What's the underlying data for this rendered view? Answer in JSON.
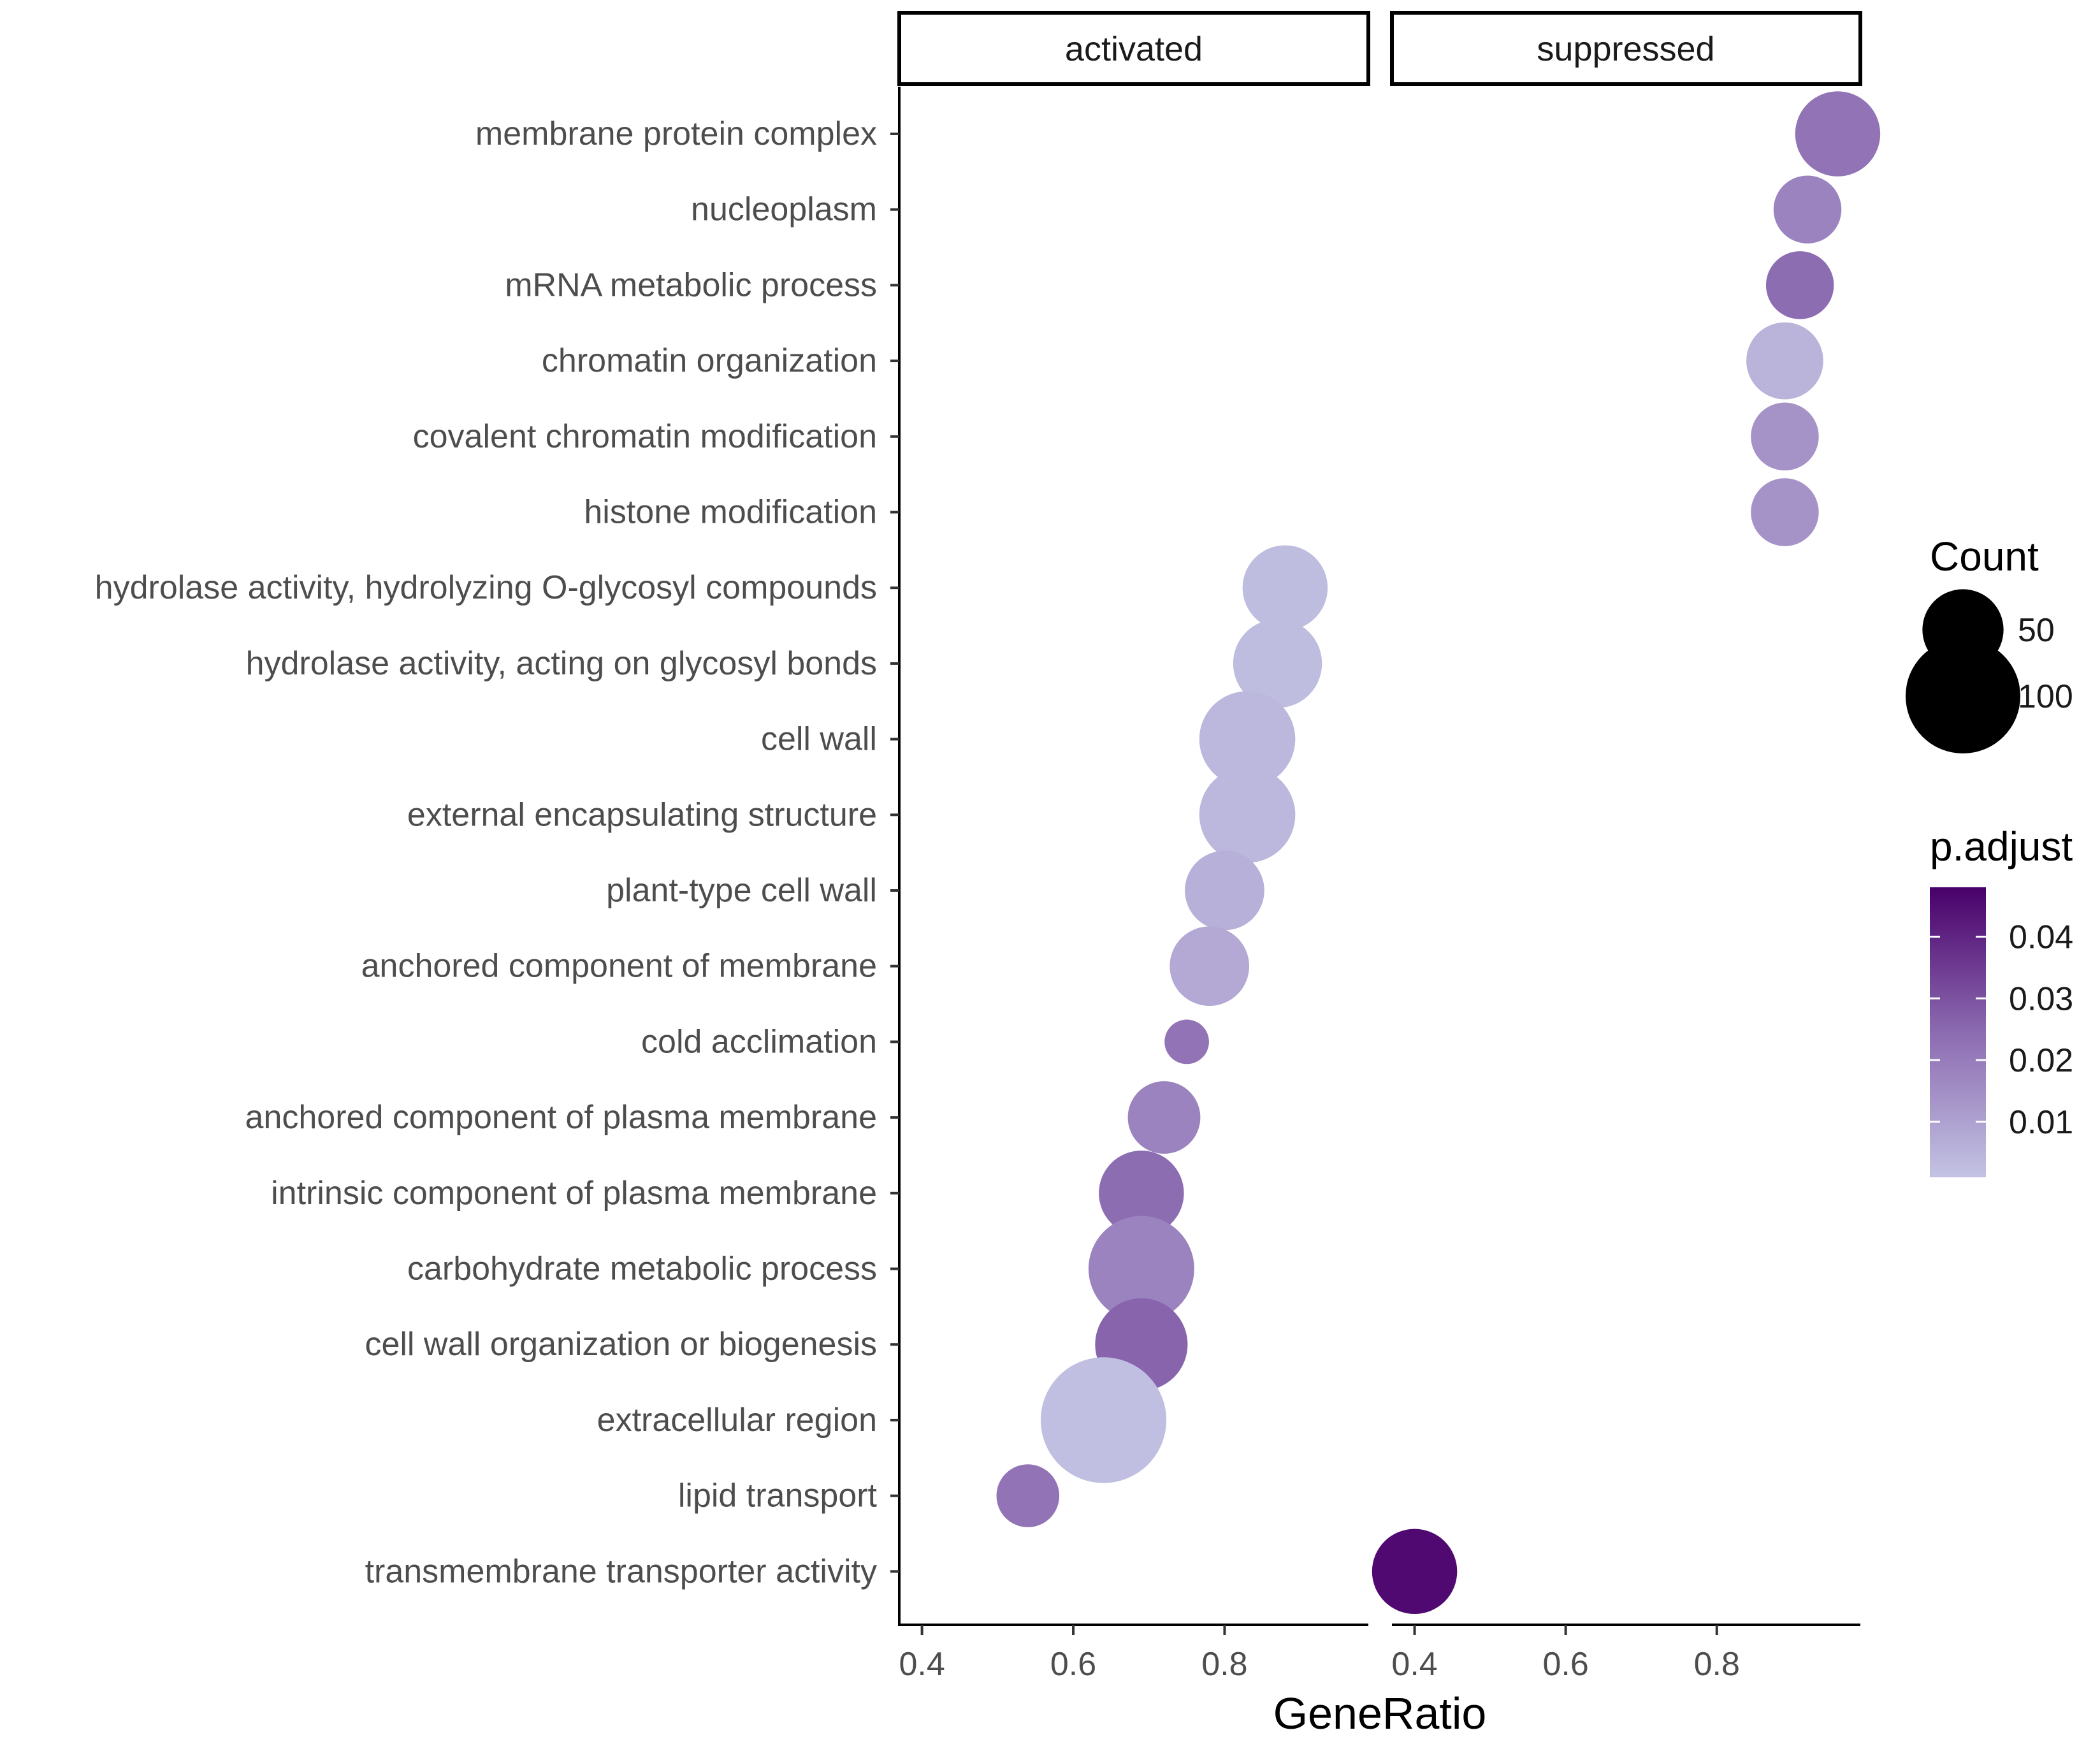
{
  "chart_data": {
    "type": "scatter",
    "kind": "faceted dot plot",
    "xlabel": "GeneRatio",
    "ylabel": "",
    "facets": [
      "activated",
      "suppressed"
    ],
    "xlim": [
      0.37,
      0.99
    ],
    "x_ticks": [
      "0.4",
      "0.6",
      "0.8"
    ],
    "x_tick_values": [
      0.4,
      0.6,
      0.8
    ],
    "categories": [
      "membrane protein complex",
      "nucleoplasm",
      "mRNA metabolic process",
      "chromatin organization",
      "covalent chromatin modification",
      "histone modification",
      "hydrolase activity, hydrolyzing O-glycosyl compounds",
      "hydrolase activity, acting on glycosyl bonds",
      "cell wall",
      "external encapsulating structure",
      "plant-type cell wall",
      "anchored component of membrane",
      "cold acclimation",
      "anchored component of plasma membrane",
      "intrinsic component of plasma membrane",
      "carbohydrate metabolic process",
      "cell wall organization or biogenesis",
      "extracellular region",
      "lipid transport",
      "transmembrane transporter activity"
    ],
    "series": [
      {
        "name": "activated",
        "points": [
          {
            "category": "hydrolase activity, hydrolyzing O-glycosyl compounds",
            "x": 0.88,
            "count": 55,
            "p_adjust": 0.003
          },
          {
            "category": "hydrolase activity, acting on glycosyl bonds",
            "x": 0.87,
            "count": 60,
            "p_adjust": 0.003
          },
          {
            "category": "cell wall",
            "x": 0.83,
            "count": 70,
            "p_adjust": 0.004
          },
          {
            "category": "external encapsulating structure",
            "x": 0.83,
            "count": 70,
            "p_adjust": 0.004
          },
          {
            "category": "plant-type cell wall",
            "x": 0.8,
            "count": 48,
            "p_adjust": 0.006
          },
          {
            "category": "anchored component of membrane",
            "x": 0.78,
            "count": 48,
            "p_adjust": 0.008
          },
          {
            "category": "cold acclimation",
            "x": 0.75,
            "count": 15,
            "p_adjust": 0.022
          },
          {
            "category": "anchored component of plasma membrane",
            "x": 0.72,
            "count": 40,
            "p_adjust": 0.018
          },
          {
            "category": "intrinsic component of plasma membrane",
            "x": 0.69,
            "count": 55,
            "p_adjust": 0.024
          },
          {
            "category": "carbohydrate metabolic process",
            "x": 0.69,
            "count": 85,
            "p_adjust": 0.018
          },
          {
            "category": "cell wall organization or biogenesis",
            "x": 0.69,
            "count": 65,
            "p_adjust": 0.026
          },
          {
            "category": "extracellular region",
            "x": 0.64,
            "count": 120,
            "p_adjust": 0.002
          },
          {
            "category": "lipid transport",
            "x": 0.54,
            "count": 30,
            "p_adjust": 0.022
          }
        ]
      },
      {
        "name": "suppressed",
        "points": [
          {
            "category": "membrane protein complex",
            "x": 0.96,
            "count": 55,
            "p_adjust": 0.022
          },
          {
            "category": "nucleoplasm",
            "x": 0.92,
            "count": 35,
            "p_adjust": 0.018
          },
          {
            "category": "mRNA metabolic process",
            "x": 0.91,
            "count": 35,
            "p_adjust": 0.024
          },
          {
            "category": "chromatin organization",
            "x": 0.89,
            "count": 45,
            "p_adjust": 0.005
          },
          {
            "category": "covalent chromatin modification",
            "x": 0.89,
            "count": 35,
            "p_adjust": 0.014
          },
          {
            "category": "histone modification",
            "x": 0.89,
            "count": 35,
            "p_adjust": 0.014
          },
          {
            "category": "transmembrane transporter activity",
            "x": 0.4,
            "count": 55,
            "p_adjust": 0.046
          }
        ]
      }
    ],
    "legend_size": {
      "title": "Count",
      "labels": [
        "50",
        "100"
      ],
      "values": [
        50,
        100
      ]
    },
    "legend_color": {
      "title": "p.adjust",
      "labels": [
        "0.04",
        "0.03",
        "0.02",
        "0.01"
      ],
      "values": [
        0.04,
        0.03,
        0.02,
        0.01
      ],
      "range": [
        0.001,
        0.048
      ],
      "color_low": "#c3c3e3",
      "color_mid": "#8c6bb1",
      "color_high": "#49006a"
    }
  }
}
